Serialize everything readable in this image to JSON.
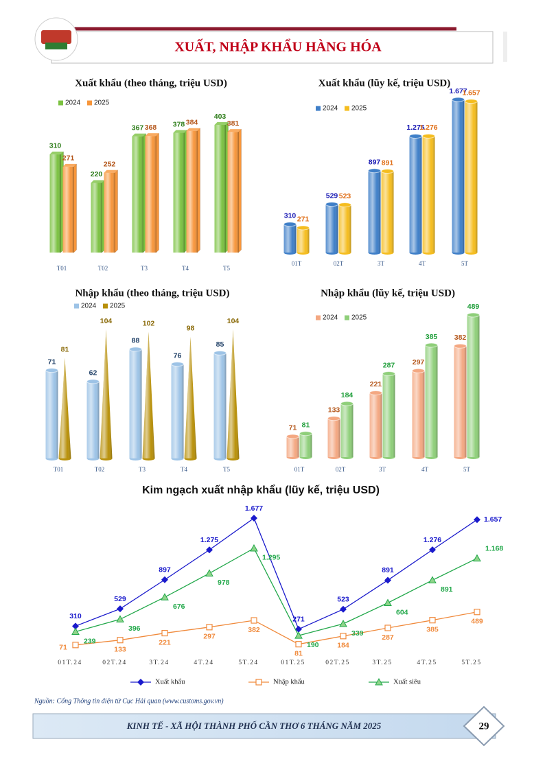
{
  "header": {
    "title": "XUẤT, NHẬP KHẨU HÀNG HÓA"
  },
  "chart_data": [
    {
      "type": "bar",
      "title": "Xuất khẩu (theo tháng, triệu USD)",
      "categories": [
        "T01",
        "T02",
        "T3",
        "T4",
        "T5"
      ],
      "series": [
        {
          "name": "2024",
          "color": "#7cc242",
          "label_color": "#2e7d1a",
          "shape": "box",
          "values": [
            310,
            220,
            367,
            378,
            403
          ]
        },
        {
          "name": "2025",
          "color": "#f7963b",
          "label_color": "#b4561a",
          "shape": "box",
          "values": [
            271,
            252,
            368,
            384,
            381
          ]
        }
      ]
    },
    {
      "type": "bar",
      "title": "Xuất khẩu (lũy kế, triệu USD)",
      "categories": [
        "01T",
        "02T",
        "3T",
        "4T",
        "5T"
      ],
      "series": [
        {
          "name": "2024",
          "color": "#3f7fc8",
          "label_color": "#1a1ab4",
          "shape": "cylinder",
          "values": [
            310,
            529,
            897,
            1275,
            1677
          ],
          "value_labels": [
            "310",
            "529",
            "897",
            "1.275",
            "1.677"
          ]
        },
        {
          "name": "2025",
          "color": "#f5bd1f",
          "label_color": "#e0701a",
          "shape": "cylinder",
          "values": [
            271,
            523,
            891,
            1276,
            1657
          ],
          "value_labels": [
            "271",
            "523",
            "891",
            "1.276",
            "1.657"
          ]
        }
      ]
    },
    {
      "type": "bar",
      "title": "Nhập khẩu (theo tháng, triệu USD)",
      "categories": [
        "T01",
        "T02",
        "T3",
        "T4",
        "T5"
      ],
      "series": [
        {
          "name": "2024",
          "color": "#9dc3e6",
          "label_color": "#1f3f66",
          "shape": "cylinder",
          "values": [
            71,
            62,
            88,
            76,
            85
          ]
        },
        {
          "name": "2025",
          "color": "#b8900a",
          "label_color": "#8a6a08",
          "shape": "cone",
          "values": [
            81,
            104,
            102,
            98,
            104
          ]
        }
      ]
    },
    {
      "type": "bar",
      "title": "Nhập khẩu (lũy kế, triệu USD)",
      "categories": [
        "01T",
        "02T",
        "3T",
        "4T",
        "5T"
      ],
      "series": [
        {
          "name": "2024",
          "color": "#f4a882",
          "label_color": "#b4561a",
          "shape": "cylinder",
          "values": [
            71,
            133,
            221,
            297,
            382
          ]
        },
        {
          "name": "2025",
          "color": "#8fcf7a",
          "label_color": "#1f9e3a",
          "shape": "cylinder",
          "values": [
            81,
            184,
            287,
            385,
            489
          ]
        }
      ]
    },
    {
      "type": "line",
      "title": "Kim ngạch xuất nhập khẩu (lũy kế, triệu USD)",
      "categories": [
        "01T.24",
        "02T.24",
        "3T.24",
        "4T.24",
        "5T.24",
        "01T.25",
        "02T.25",
        "3T.25",
        "4T.25",
        "5T.25"
      ],
      "legend": "bottom",
      "series": [
        {
          "name": "Xuất khẩu",
          "color": "#1a1acc",
          "marker": "diamond",
          "label_pos": "above",
          "values": [
            310,
            529,
            897,
            1275,
            1677,
            271,
            523,
            891,
            1276,
            1657
          ],
          "value_labels": [
            "310",
            "529",
            "897",
            "1.275",
            "1.677",
            "271",
            "523",
            "891",
            "1.276",
            "1.657"
          ]
        },
        {
          "name": "Nhập khẩu",
          "color": "#f08a3c",
          "marker": "square",
          "label_pos": "below",
          "values": [
            71,
            133,
            221,
            297,
            382,
            81,
            184,
            287,
            385,
            489
          ]
        },
        {
          "name": "Xuất siêu",
          "color": "#22a84a",
          "marker": "triangle",
          "label_pos": "below-right",
          "values": [
            239,
            396,
            676,
            978,
            1295,
            190,
            339,
            604,
            891,
            1168
          ],
          "value_labels": [
            "239",
            "396",
            "676",
            "978",
            "1.295",
            "190",
            "339",
            "604",
            "891",
            "1.168"
          ]
        }
      ]
    }
  ],
  "source": "Nguồn: Cổng Thông tin điện tử Cục Hải quan (www.customs.gov.vn)",
  "footer": {
    "text": "KINH TẾ - XÃ HỘI THÀNH PHỐ CẦN THƠ 6 THÁNG NĂM 2025",
    "page": "29"
  }
}
